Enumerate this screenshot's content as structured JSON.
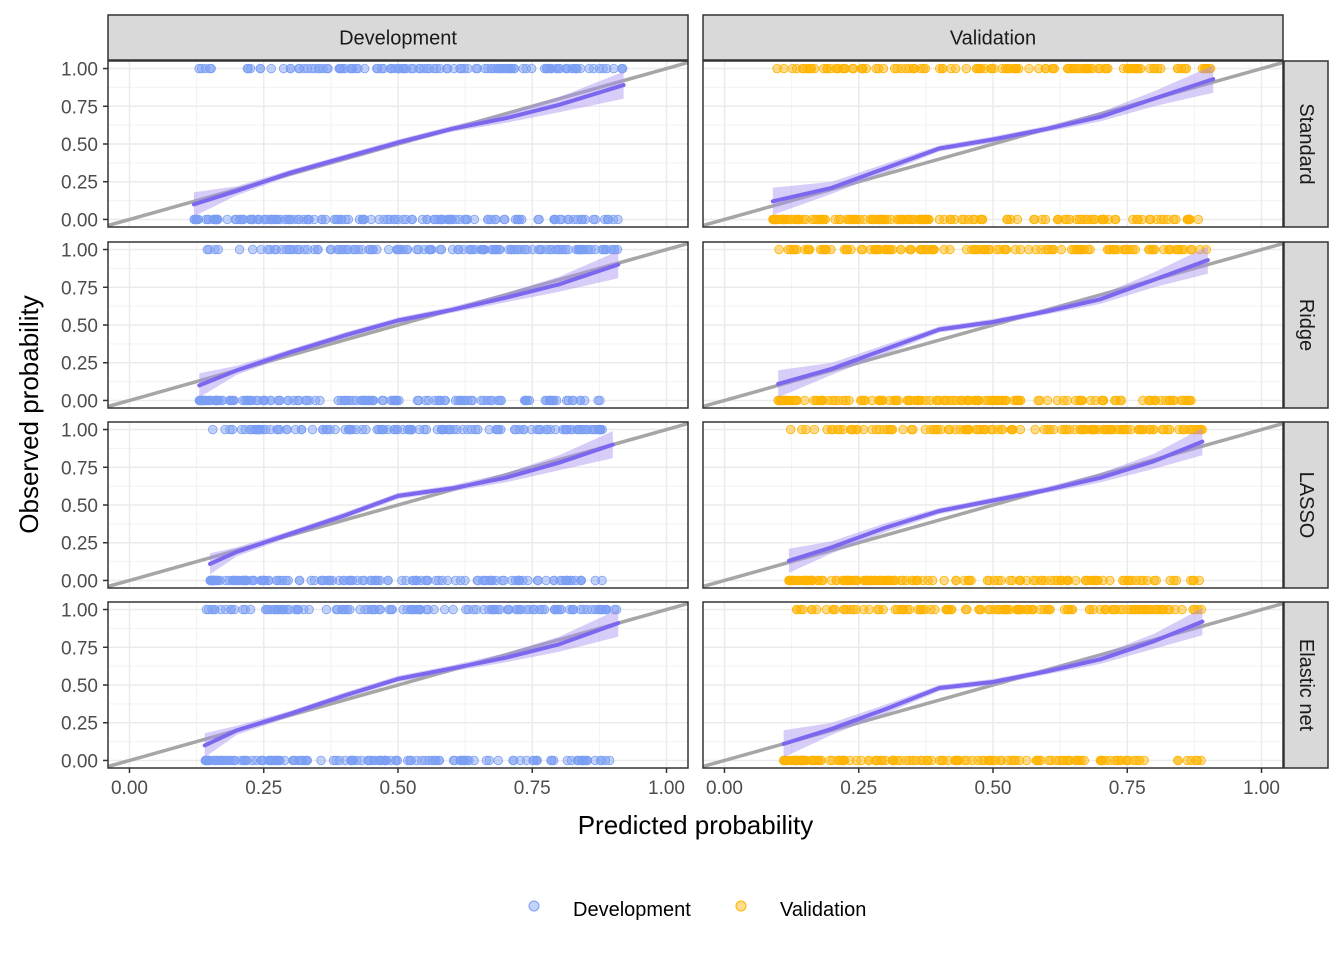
{
  "chart_data": {
    "type": "scatter",
    "subtype": "calibration-plot facet grid",
    "xlabel": "Predicted probability",
    "ylabel": "Observed probability",
    "xlim": [
      -0.04,
      1.04
    ],
    "ylim": [
      -0.05,
      1.05
    ],
    "x_ticks": [
      "0.00",
      "0.25",
      "0.50",
      "0.75",
      "1.00"
    ],
    "y_ticks": [
      "0.00",
      "0.25",
      "0.50",
      "0.75",
      "1.00"
    ],
    "columns": [
      "Development",
      "Validation"
    ],
    "rows": [
      "Standard",
      "Ridge",
      "LASSO",
      "Elastic net"
    ],
    "grid": true,
    "reference_line": "y = x",
    "legend": {
      "position": "bottom",
      "entries": [
        {
          "label": "Development",
          "color": "#7B9EF4"
        },
        {
          "label": "Validation",
          "color": "#FFB300"
        }
      ]
    },
    "colors": {
      "Development": "#7B9EF4",
      "Validation": "#FFB300",
      "smooth_line": "#7B68EE",
      "smooth_band": "#A98EF0",
      "reference": "#A6A6A6",
      "strip_fill": "#D9D9D9"
    },
    "panels": [
      {
        "row": "Standard",
        "col": "Development",
        "x_range": [
          0.12,
          0.92
        ],
        "smooth": [
          [
            0.12,
            0.1
          ],
          [
            0.2,
            0.19
          ],
          [
            0.3,
            0.31
          ],
          [
            0.4,
            0.41
          ],
          [
            0.5,
            0.51
          ],
          [
            0.6,
            0.6
          ],
          [
            0.7,
            0.67
          ],
          [
            0.8,
            0.76
          ],
          [
            0.92,
            0.89
          ]
        ],
        "band_halfwidth": [
          0.08,
          0.03,
          0.02,
          0.02,
          0.02,
          0.02,
          0.03,
          0.05,
          0.09
        ]
      },
      {
        "row": "Standard",
        "col": "Validation",
        "x_range": [
          0.09,
          0.91
        ],
        "smooth": [
          [
            0.09,
            0.12
          ],
          [
            0.2,
            0.21
          ],
          [
            0.3,
            0.34
          ],
          [
            0.4,
            0.47
          ],
          [
            0.5,
            0.53
          ],
          [
            0.6,
            0.6
          ],
          [
            0.7,
            0.68
          ],
          [
            0.8,
            0.8
          ],
          [
            0.91,
            0.93
          ]
        ],
        "band_halfwidth": [
          0.09,
          0.04,
          0.03,
          0.02,
          0.02,
          0.02,
          0.03,
          0.05,
          0.09
        ]
      },
      {
        "row": "Ridge",
        "col": "Development",
        "x_range": [
          0.13,
          0.91
        ],
        "smooth": [
          [
            0.13,
            0.1
          ],
          [
            0.2,
            0.2
          ],
          [
            0.3,
            0.32
          ],
          [
            0.4,
            0.43
          ],
          [
            0.5,
            0.53
          ],
          [
            0.6,
            0.6
          ],
          [
            0.7,
            0.68
          ],
          [
            0.8,
            0.77
          ],
          [
            0.91,
            0.9
          ]
        ],
        "band_halfwidth": [
          0.08,
          0.03,
          0.02,
          0.02,
          0.02,
          0.02,
          0.03,
          0.05,
          0.09
        ]
      },
      {
        "row": "Ridge",
        "col": "Validation",
        "x_range": [
          0.1,
          0.9
        ],
        "smooth": [
          [
            0.1,
            0.11
          ],
          [
            0.2,
            0.21
          ],
          [
            0.3,
            0.34
          ],
          [
            0.4,
            0.47
          ],
          [
            0.5,
            0.52
          ],
          [
            0.6,
            0.59
          ],
          [
            0.7,
            0.67
          ],
          [
            0.8,
            0.8
          ],
          [
            0.9,
            0.93
          ]
        ],
        "band_halfwidth": [
          0.09,
          0.04,
          0.03,
          0.02,
          0.02,
          0.02,
          0.03,
          0.05,
          0.09
        ]
      },
      {
        "row": "LASSO",
        "col": "Development",
        "x_range": [
          0.15,
          0.9
        ],
        "smooth": [
          [
            0.15,
            0.11
          ],
          [
            0.2,
            0.19
          ],
          [
            0.3,
            0.31
          ],
          [
            0.4,
            0.43
          ],
          [
            0.5,
            0.56
          ],
          [
            0.6,
            0.61
          ],
          [
            0.7,
            0.68
          ],
          [
            0.8,
            0.78
          ],
          [
            0.9,
            0.9
          ]
        ],
        "band_halfwidth": [
          0.07,
          0.03,
          0.02,
          0.02,
          0.02,
          0.02,
          0.03,
          0.05,
          0.09
        ]
      },
      {
        "row": "LASSO",
        "col": "Validation",
        "x_range": [
          0.12,
          0.89
        ],
        "smooth": [
          [
            0.12,
            0.13
          ],
          [
            0.2,
            0.22
          ],
          [
            0.3,
            0.35
          ],
          [
            0.4,
            0.46
          ],
          [
            0.5,
            0.53
          ],
          [
            0.6,
            0.6
          ],
          [
            0.7,
            0.68
          ],
          [
            0.8,
            0.79
          ],
          [
            0.89,
            0.92
          ]
        ],
        "band_halfwidth": [
          0.08,
          0.04,
          0.03,
          0.02,
          0.02,
          0.02,
          0.03,
          0.05,
          0.09
        ]
      },
      {
        "row": "Elastic net",
        "col": "Development",
        "x_range": [
          0.14,
          0.91
        ],
        "smooth": [
          [
            0.14,
            0.1
          ],
          [
            0.2,
            0.2
          ],
          [
            0.3,
            0.31
          ],
          [
            0.4,
            0.43
          ],
          [
            0.5,
            0.54
          ],
          [
            0.6,
            0.61
          ],
          [
            0.7,
            0.68
          ],
          [
            0.8,
            0.77
          ],
          [
            0.91,
            0.91
          ]
        ],
        "band_halfwidth": [
          0.08,
          0.03,
          0.02,
          0.02,
          0.02,
          0.02,
          0.03,
          0.05,
          0.09
        ]
      },
      {
        "row": "Elastic net",
        "col": "Validation",
        "x_range": [
          0.11,
          0.89
        ],
        "smooth": [
          [
            0.11,
            0.11
          ],
          [
            0.2,
            0.21
          ],
          [
            0.3,
            0.34
          ],
          [
            0.4,
            0.48
          ],
          [
            0.5,
            0.52
          ],
          [
            0.6,
            0.59
          ],
          [
            0.7,
            0.67
          ],
          [
            0.8,
            0.79
          ],
          [
            0.89,
            0.92
          ]
        ],
        "band_halfwidth": [
          0.09,
          0.04,
          0.03,
          0.02,
          0.02,
          0.02,
          0.03,
          0.05,
          0.09
        ]
      }
    ]
  }
}
